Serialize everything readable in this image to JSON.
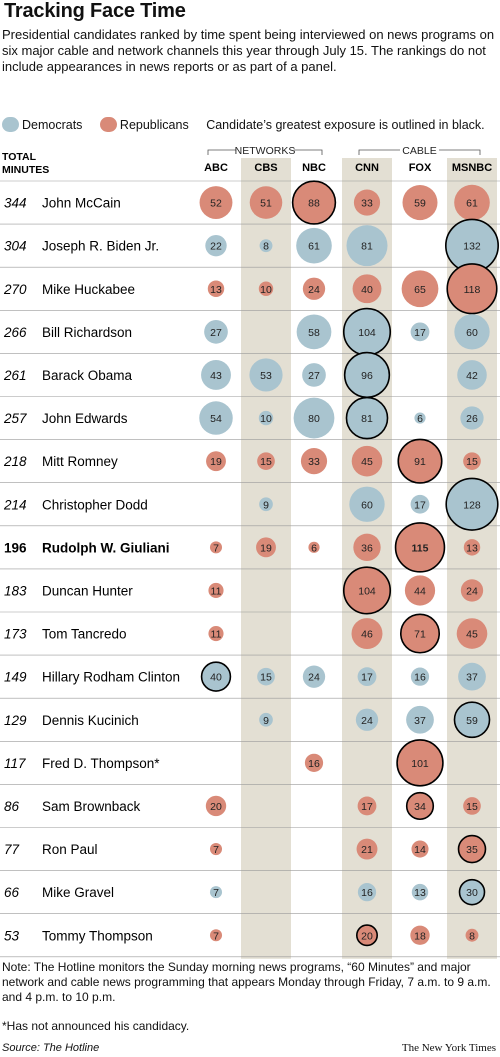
{
  "title": "Tracking Face Time",
  "subtitle": "Presidential candidates ranked by time spent being interviewed on news programs on six major cable and network channels this year through July 15. The rankings do not include appearances in news reports or as part of a panel.",
  "legend": {
    "democrats": "Democrats",
    "republicans": "Republicans",
    "note": "Candidate’s greatest exposure is outlined in black."
  },
  "colors": {
    "democrat": "#a9c4cf",
    "republican": "#d98a78",
    "column_shade": "#e3dfd3"
  },
  "header": {
    "total_line1": "TOTAL",
    "total_line2": "MINUTES",
    "networks_label": "NETWORKS",
    "cable_label": "CABLE"
  },
  "chart_data": {
    "type": "bubble-table",
    "title": "Tracking Face Time",
    "columns": [
      "ABC",
      "CBS",
      "NBC",
      "CNN",
      "FOX",
      "MSNBC"
    ],
    "column_groups": [
      {
        "name": "NETWORKS",
        "columns": [
          "ABC",
          "CBS",
          "NBC"
        ]
      },
      {
        "name": "CABLE",
        "columns": [
          "CNN",
          "FOX",
          "MSNBC"
        ]
      }
    ],
    "rows": [
      {
        "total": "344",
        "name": "John McCain",
        "party": "R",
        "values": [
          52,
          51,
          88,
          33,
          59,
          61
        ],
        "max": 2
      },
      {
        "total": "304",
        "name": "Joseph R. Biden Jr.",
        "party": "D",
        "values": [
          22,
          8,
          61,
          81,
          null,
          132
        ],
        "max": 5
      },
      {
        "total": "270",
        "name": "Mike Huckabee",
        "party": "R",
        "values": [
          13,
          10,
          24,
          40,
          65,
          118
        ],
        "max": 5
      },
      {
        "total": "266",
        "name": "Bill Richardson",
        "party": "D",
        "values": [
          27,
          null,
          58,
          104,
          17,
          60
        ],
        "max": 3
      },
      {
        "total": "261",
        "name": "Barack Obama",
        "party": "D",
        "values": [
          43,
          53,
          27,
          96,
          null,
          42
        ],
        "max": 3
      },
      {
        "total": "257",
        "name": "John Edwards",
        "party": "D",
        "values": [
          54,
          10,
          80,
          81,
          6,
          26
        ],
        "max": 3
      },
      {
        "total": "218",
        "name": "Mitt Romney",
        "party": "R",
        "values": [
          19,
          15,
          33,
          45,
          91,
          15
        ],
        "max": 4
      },
      {
        "total": "214",
        "name": "Christopher Dodd",
        "party": "D",
        "values": [
          null,
          9,
          null,
          60,
          17,
          128
        ],
        "max": 5
      },
      {
        "total": "196",
        "name": "Rudolph W. Giuliani",
        "party": "R",
        "values": [
          7,
          19,
          6,
          36,
          115,
          13
        ],
        "max": 4,
        "bold": true
      },
      {
        "total": "183",
        "name": "Duncan Hunter",
        "party": "R",
        "values": [
          11,
          null,
          null,
          104,
          44,
          24
        ],
        "max": 3
      },
      {
        "total": "173",
        "name": "Tom Tancredo",
        "party": "R",
        "values": [
          11,
          null,
          null,
          46,
          71,
          45
        ],
        "max": 4
      },
      {
        "total": "149",
        "name": "Hillary Rodham Clinton",
        "party": "D",
        "values": [
          40,
          15,
          24,
          17,
          16,
          37
        ],
        "max": 0
      },
      {
        "total": "129",
        "name": "Dennis Kucinich",
        "party": "D",
        "values": [
          null,
          9,
          null,
          24,
          37,
          59
        ],
        "max": 5
      },
      {
        "total": "117",
        "name": "Fred D. Thompson*",
        "party": "R",
        "values": [
          null,
          null,
          16,
          null,
          101,
          null
        ],
        "max": 4
      },
      {
        "total": "86",
        "name": "Sam Brownback",
        "party": "R",
        "values": [
          20,
          null,
          null,
          17,
          34,
          15
        ],
        "max": 4
      },
      {
        "total": "77",
        "name": "Ron Paul",
        "party": "R",
        "values": [
          7,
          null,
          null,
          21,
          14,
          35
        ],
        "max": 5
      },
      {
        "total": "66",
        "name": "Mike Gravel",
        "party": "D",
        "values": [
          7,
          null,
          null,
          16,
          13,
          30
        ],
        "max": 5
      },
      {
        "total": "53",
        "name": "Tommy Thompson",
        "party": "R",
        "values": [
          7,
          null,
          null,
          20,
          18,
          8
        ],
        "max": 3
      }
    ]
  },
  "footer_note": "Note: The Hotline monitors the Sunday morning news programs, “60 Minutes” and major network and cable news programming that appears Monday through Friday, 7 a.m. to 9 a.m. and 4 p.m. to 10 p.m.",
  "footnote": "*Has not announced his candidacy.",
  "source": "Source: The Hotline",
  "credit": "The New York Times"
}
